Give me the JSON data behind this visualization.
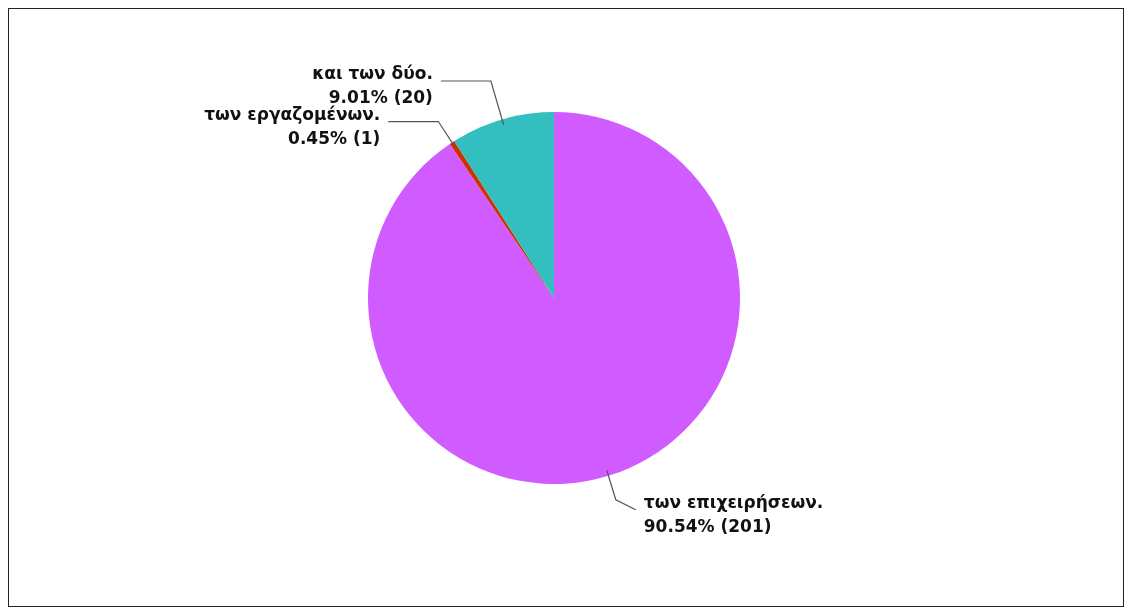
{
  "chart_data": {
    "type": "pie",
    "categories": [
      "των επιχειρήσεων.",
      "των εργαζομένων.",
      "και των δύο."
    ],
    "values": [
      201,
      1,
      20
    ],
    "colors": [
      "#d05cff",
      "#cc3300",
      "#33bfbf"
    ],
    "value_labels": [
      "90.54% (201)",
      "0.45% (1)",
      "9.01% (20)"
    ],
    "legend": false
  }
}
